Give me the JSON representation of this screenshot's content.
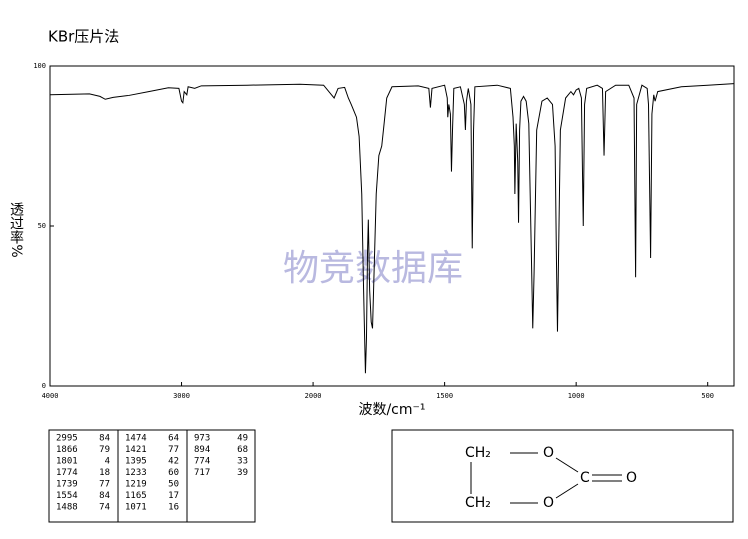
{
  "chart_data": {
    "type": "line",
    "title": "KBr压片法",
    "xlabel": "波数/cm⁻¹",
    "ylabel": "透过率%",
    "watermark": "物竞数据库",
    "xlim": [
      4000,
      400
    ],
    "ylim": [
      0,
      100
    ],
    "x_expand_below": 2000,
    "x_expand_factor": 2,
    "xticks": [
      4000,
      3000,
      2000,
      1500,
      1000,
      500
    ],
    "yticks": [
      0,
      50,
      100
    ],
    "x": [
      4000,
      3700,
      3620,
      3580,
      3520,
      3400,
      3250,
      3100,
      3020,
      3000,
      2990,
      2980,
      2960,
      2950,
      2900,
      2850,
      2500,
      2100,
      1960,
      1930,
      1920,
      1905,
      1880,
      1866,
      1855,
      1845,
      1835,
      1825,
      1815,
      1808,
      1801,
      1797,
      1793,
      1790,
      1785,
      1779,
      1774,
      1770,
      1765,
      1760,
      1750,
      1739,
      1730,
      1720,
      1700,
      1600,
      1560,
      1554,
      1548,
      1500,
      1490,
      1488,
      1484,
      1478,
      1474,
      1470,
      1465,
      1440,
      1425,
      1421,
      1417,
      1410,
      1400,
      1395,
      1390,
      1385,
      1300,
      1250,
      1240,
      1235,
      1233,
      1228,
      1222,
      1219,
      1215,
      1210,
      1200,
      1190,
      1180,
      1170,
      1165,
      1160,
      1150,
      1130,
      1110,
      1090,
      1080,
      1075,
      1071,
      1067,
      1060,
      1040,
      1020,
      1010,
      1000,
      990,
      980,
      973,
      968,
      960,
      920,
      900,
      894,
      888,
      850,
      800,
      780,
      774,
      770,
      750,
      730,
      725,
      717,
      712,
      705,
      700,
      690,
      600,
      500,
      400
    ],
    "series": [
      {
        "color": "#000000",
        "values": [
          91,
          91.3,
          90.5,
          89.6,
          90.2,
          90.8,
          92,
          93.2,
          93,
          89,
          88.5,
          92,
          91,
          93.5,
          93,
          93.8,
          94,
          94.3,
          94,
          91,
          90,
          93,
          93.3,
          90,
          88,
          86,
          84,
          78,
          60,
          30,
          4,
          15,
          42,
          52,
          30,
          20,
          18,
          30,
          45,
          60,
          72,
          75,
          82,
          90,
          93.5,
          93.8,
          93,
          87,
          93,
          94,
          90,
          84,
          88,
          85,
          67,
          80,
          93,
          93.5,
          88,
          80,
          89,
          93,
          88,
          43,
          80,
          93.5,
          94,
          93,
          84,
          75,
          60,
          82,
          70,
          51,
          80,
          89,
          90.5,
          89,
          82,
          40,
          18,
          35,
          80,
          89,
          90,
          88,
          75,
          40,
          17,
          40,
          80,
          90,
          92,
          91,
          92.5,
          93,
          90,
          50,
          88,
          93,
          94,
          93,
          72,
          92,
          94,
          94,
          90,
          34,
          88,
          94,
          93,
          88,
          40,
          85,
          91,
          89,
          92,
          93.5,
          94,
          94.5
        ]
      }
    ]
  },
  "peaks": [
    [
      "2995",
      "84"
    ],
    [
      "1866",
      "79"
    ],
    [
      "1801",
      "4"
    ],
    [
      "1774",
      "18"
    ],
    [
      "1739",
      "77"
    ],
    [
      "1554",
      "84"
    ],
    [
      "1488",
      "74"
    ],
    [
      "1474",
      "64"
    ],
    [
      "1421",
      "77"
    ],
    [
      "1395",
      "42"
    ],
    [
      "1233",
      "60"
    ],
    [
      "1219",
      "50"
    ],
    [
      "1165",
      "17"
    ],
    [
      "1071",
      "16"
    ],
    [
      "973",
      "49"
    ],
    [
      "894",
      "68"
    ],
    [
      "774",
      "33"
    ],
    [
      "717",
      "39"
    ]
  ],
  "structure": {
    "ch2_top": "CH₂",
    "ch2_bottom": "CH₂",
    "o_top": "O",
    "o_bottom": "O",
    "c": "C",
    "o_carbonyl": "O"
  }
}
